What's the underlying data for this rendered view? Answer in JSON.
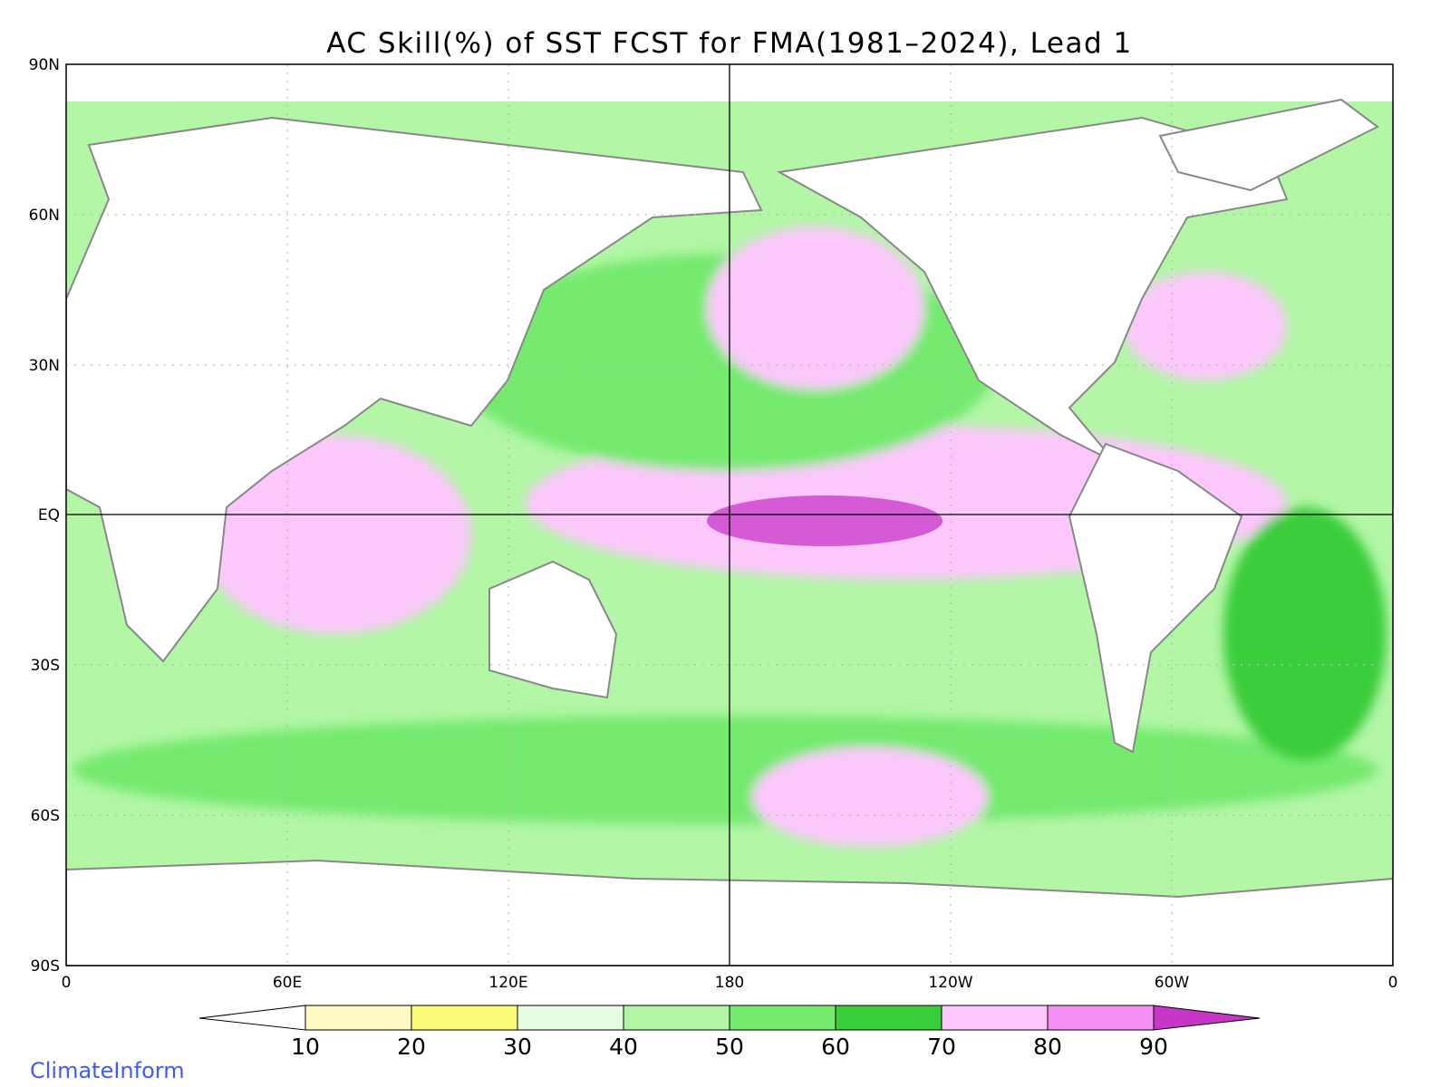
{
  "title": "AC Skill(%) of SST FCST for FMA(1981–2024), Lead 1",
  "map": {
    "lat_axis": {
      "labels": [
        "90N",
        "60N",
        "30N",
        "EQ",
        "30S",
        "60S",
        "90S"
      ]
    },
    "lon_axis": {
      "labels": [
        "0",
        "60E",
        "120E",
        "180",
        "120W",
        "60W",
        "0"
      ]
    },
    "gridlines": "dotted",
    "reference_lines": [
      "Equator",
      "180"
    ]
  },
  "colorbar": {
    "levels": [
      "10",
      "20",
      "30",
      "40",
      "50",
      "60",
      "70",
      "80",
      "90"
    ],
    "colors": [
      "#ffffff",
      "#fffac4",
      "#fdfb7a",
      "#e7fde3",
      "#b2f6a6",
      "#74ea6e",
      "#3acd3a",
      "#fcc8fc",
      "#f490f4",
      "#c836c8"
    ],
    "extends": "both"
  },
  "colors": {
    "land": "#ffffff",
    "coastline": "#888888",
    "lakes": "#000000"
  },
  "credit": "ClimateInform"
}
